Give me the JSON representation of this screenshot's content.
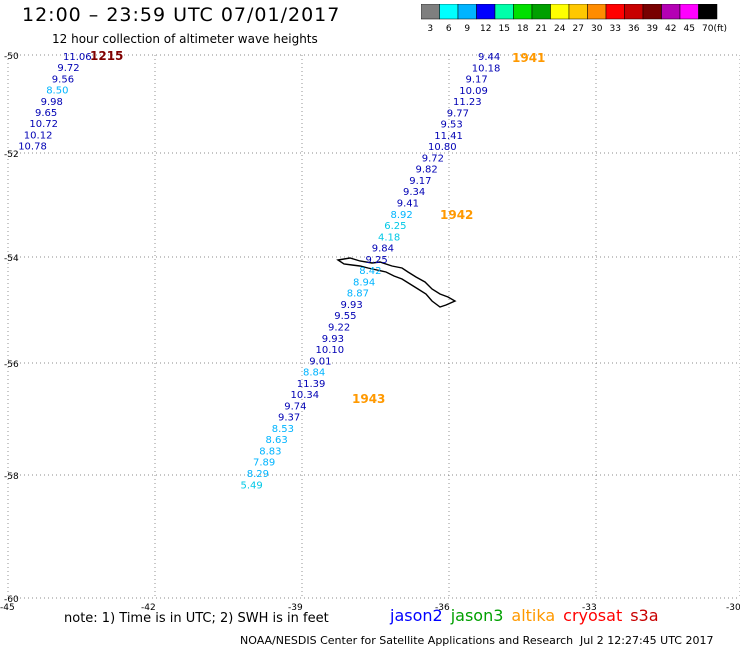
{
  "header": {
    "title": "12:00 – 23:59 UTC 07/01/2017",
    "subtitle": "12 hour collection of altimeter wave heights"
  },
  "color_scale": {
    "unit_label": "(ft)",
    "bins": [
      {
        "label": "3",
        "color": "#7f7f7f"
      },
      {
        "label": "6",
        "color": "#00ffff"
      },
      {
        "label": "9",
        "color": "#00b4ff"
      },
      {
        "label": "12",
        "color": "#0000ff"
      },
      {
        "label": "15",
        "color": "#00ffaa"
      },
      {
        "label": "18",
        "color": "#00e000"
      },
      {
        "label": "21",
        "color": "#00a000"
      },
      {
        "label": "24",
        "color": "#ffff00"
      },
      {
        "label": "27",
        "color": "#ffc800"
      },
      {
        "label": "30",
        "color": "#ff8c00"
      },
      {
        "label": "33",
        "color": "#ff0000"
      },
      {
        "label": "36",
        "color": "#c80000"
      },
      {
        "label": "39",
        "color": "#780000"
      },
      {
        "label": "42",
        "color": "#b400b4"
      },
      {
        "label": "45",
        "color": "#ff00ff"
      },
      {
        "label": "70",
        "color": "#000000"
      }
    ]
  },
  "axes": {
    "lat_ticks": [
      "-50",
      "-52",
      "-54",
      "-56",
      "-58",
      "-60"
    ],
    "lon_ticks": [
      "-45",
      "-42",
      "-39",
      "-36",
      "-33",
      "-30"
    ]
  },
  "pass_times": [
    {
      "text": "1215",
      "color": "#800000"
    },
    {
      "text": "1941",
      "color": "#ff9900"
    },
    {
      "text": "1942",
      "color": "#ff9900"
    },
    {
      "text": "1943",
      "color": "#ff9900"
    }
  ],
  "track_colors": {
    "dark": "#0000b4",
    "light": "#00b4ff",
    "cyan": "#00c8e6"
  },
  "tracks": [
    {
      "name": "track-west",
      "points": [
        {
          "v": "11.06",
          "c": "dark"
        },
        {
          "v": "9.72",
          "c": "dark"
        },
        {
          "v": "9.56",
          "c": "dark"
        },
        {
          "v": "8.50",
          "c": "light"
        },
        {
          "v": "9.98",
          "c": "dark"
        },
        {
          "v": "9.65",
          "c": "dark"
        },
        {
          "v": "10.72",
          "c": "dark"
        },
        {
          "v": "10.12",
          "c": "dark"
        },
        {
          "v": "10.78",
          "c": "dark"
        }
      ]
    },
    {
      "name": "track-east",
      "points": [
        {
          "v": "9.44",
          "c": "dark"
        },
        {
          "v": "10.18",
          "c": "dark"
        },
        {
          "v": "9.17",
          "c": "dark"
        },
        {
          "v": "10.09",
          "c": "dark"
        },
        {
          "v": "11.23",
          "c": "dark"
        },
        {
          "v": "9.77",
          "c": "dark"
        },
        {
          "v": "9.53",
          "c": "dark"
        },
        {
          "v": "11.41",
          "c": "dark"
        },
        {
          "v": "10.80",
          "c": "dark"
        },
        {
          "v": "9.72",
          "c": "dark"
        },
        {
          "v": "9.82",
          "c": "dark"
        },
        {
          "v": "9.17",
          "c": "dark"
        },
        {
          "v": "9.34",
          "c": "dark"
        },
        {
          "v": "9.41",
          "c": "dark"
        },
        {
          "v": "8.92",
          "c": "light"
        },
        {
          "v": "6.25",
          "c": "cyan"
        },
        {
          "v": "4.18",
          "c": "cyan"
        },
        {
          "v": "9.84",
          "c": "dark"
        },
        {
          "v": "9.25",
          "c": "dark"
        },
        {
          "v": "8.42",
          "c": "light"
        },
        {
          "v": "8.94",
          "c": "light"
        },
        {
          "v": "8.87",
          "c": "light"
        },
        {
          "v": "9.93",
          "c": "dark"
        },
        {
          "v": "9.55",
          "c": "dark"
        },
        {
          "v": "9.22",
          "c": "dark"
        },
        {
          "v": "9.93",
          "c": "dark"
        },
        {
          "v": "10.10",
          "c": "dark"
        },
        {
          "v": "9.01",
          "c": "dark"
        },
        {
          "v": "8.84",
          "c": "light"
        },
        {
          "v": "11.39",
          "c": "dark"
        },
        {
          "v": "10.34",
          "c": "dark"
        },
        {
          "v": "9.74",
          "c": "dark"
        },
        {
          "v": "9.37",
          "c": "dark"
        },
        {
          "v": "8.53",
          "c": "light"
        },
        {
          "v": "8.63",
          "c": "light"
        },
        {
          "v": "8.83",
          "c": "light"
        },
        {
          "v": "7.89",
          "c": "light"
        },
        {
          "v": "8.29",
          "c": "light"
        },
        {
          "v": "5.49",
          "c": "cyan"
        }
      ]
    }
  ],
  "footer": {
    "note": "note: 1) Time is in UTC; 2) SWH is in feet",
    "legend": [
      {
        "label": "jason2",
        "color": "#0000ff"
      },
      {
        "label": "jason3",
        "color": "#00a000"
      },
      {
        "label": "altika",
        "color": "#ff9900"
      },
      {
        "label": "cryosat",
        "color": "#ff0000"
      },
      {
        "label": "s3a",
        "color": "#c80000"
      }
    ],
    "credit": "NOAA/NESDIS Center for Satellite Applications and Research",
    "timestamp": "Jul  2 12:27:45 UTC 2017"
  }
}
